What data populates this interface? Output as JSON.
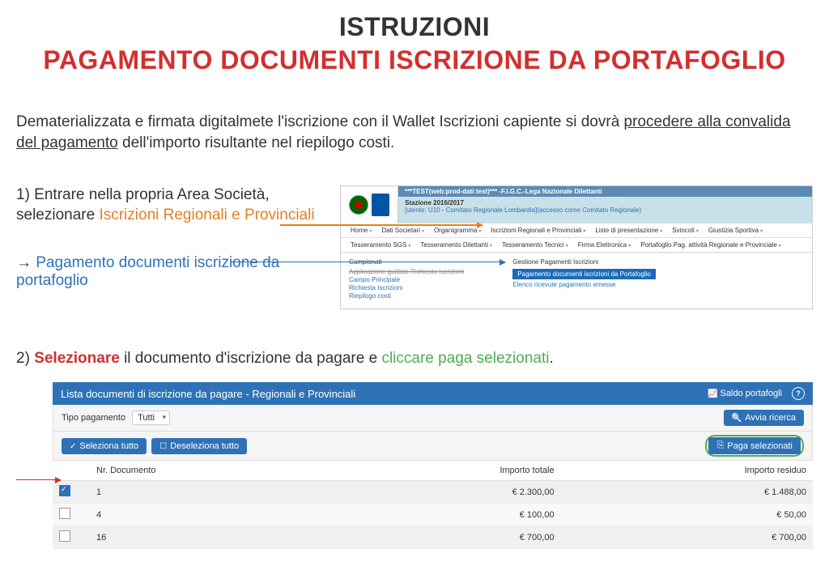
{
  "header": {
    "title": "ISTRUZIONI",
    "subtitle": "PAGAMENTO DOCUMENTI ISCRIZIONE DA PORTAFOGLIO"
  },
  "intro": {
    "part1": "Dematerializzata e firmata digitalmete l'iscrizione con il Wallet Iscrizioni capiente si dovrà ",
    "underlined": "procedere alla convalida del pagamento",
    "part2": " dell'importo risultante nel riepilogo costi."
  },
  "step1": {
    "prefix": "1) Entrare nella propria Area Società, selezionare ",
    "orange": "Iscrizioni Regionali e Provinciali",
    "arrow": "→",
    "blue": "Pagamento documenti iscrizione da portafoglio"
  },
  "shot1": {
    "banner_top": "***TEST(web:prod-dati:test)*** -F.I.G.C.-Lega Nazionale Dilettanti",
    "banner_line1": "Stazione 2016/2017",
    "banner_line2": "[utente: U10 - Comitato Regionale Lombardia](accesso come Comitato Regionale)",
    "menu": [
      "Home",
      "Dati Societari",
      "Organigramma",
      "Iscrizioni Regionali e Provinciali",
      "Liste di presentazione",
      "Svincoli",
      "Giustizia Sportiva"
    ],
    "menu2": [
      "Tesseramento SGS",
      "Tesseramento Dilettanti",
      "Tesseramento Tecnici",
      "Firma Elettronica",
      "Portafoglio Pag. attività Regionale e Provinciale"
    ],
    "col1_head": "Campionati",
    "col1_items": [
      "Applicazione guidata Richiesta Iscrizioni",
      "Campo Principale",
      "Richiesta Iscrizioni",
      "Riepilogo costi"
    ],
    "col2_head": "Gestione Pagamenti Iscrizioni",
    "col2_hl": "Pagamento documenti iscrizioni da Portafoglio",
    "col2_item": "Elenco ricevute pagamento emesse"
  },
  "step2": {
    "prefix": "2) ",
    "red": "Selezionare",
    "mid": " il documento d'iscrizione da pagare e ",
    "green": "cliccare paga selezionati",
    "suffix": "."
  },
  "tbl": {
    "title": "Lista documenti di iscrizione da pagare - Regionali e Provinciali",
    "saldo": "Saldo portafogli",
    "tipo_label": "Tipo pagamento",
    "tipo_value": "Tutti",
    "avvia": "Avvia ricerca",
    "sel_tutto": "Seleziona tutto",
    "desel_tutto": "Deseleziona tutto",
    "paga": "Paga selezionati",
    "headers": [
      "",
      "Nr. Documento",
      "Importo totale",
      "Importo residuo"
    ],
    "rows": [
      {
        "checked": true,
        "nr": "1",
        "totale": "€ 2.300,00",
        "residuo": "€ 1.488,00"
      },
      {
        "checked": false,
        "nr": "4",
        "totale": "€ 100,00",
        "residuo": "€ 50,00"
      },
      {
        "checked": false,
        "nr": "16",
        "totale": "€ 700,00",
        "residuo": "€ 700,00"
      }
    ]
  },
  "colors": {
    "red": "#d32f2f",
    "orange": "#e67e22",
    "blue": "#2e72b5",
    "green": "#4caf50"
  }
}
